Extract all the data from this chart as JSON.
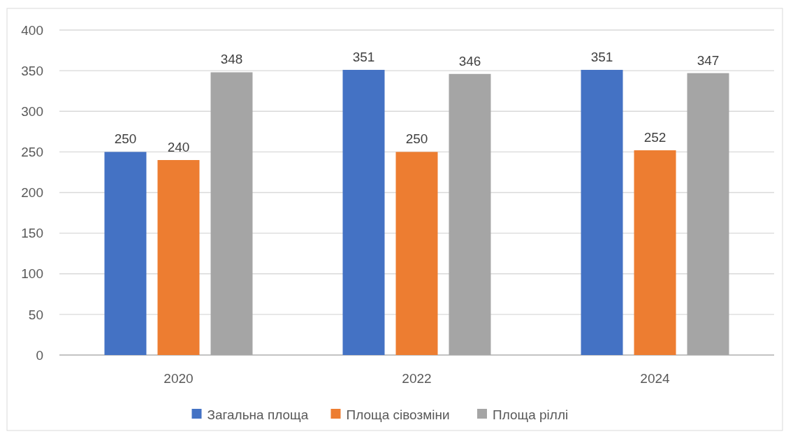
{
  "chart_data": {
    "type": "bar",
    "categories": [
      "2020",
      "2022",
      "2024"
    ],
    "series": [
      {
        "name": "Загальна площа",
        "color": "#4472c4",
        "values": [
          250,
          351,
          351
        ]
      },
      {
        "name": "Площа сівозміни",
        "color": "#ed7d31",
        "values": [
          240,
          250,
          252
        ]
      },
      {
        "name": "Площа ріллі",
        "color": "#a5a5a5",
        "values": [
          348,
          346,
          347
        ]
      }
    ],
    "ylim": [
      0,
      400
    ],
    "yticks": [
      0,
      50,
      100,
      150,
      200,
      250,
      300,
      350,
      400
    ],
    "grid": "y",
    "legend": "bottom",
    "data_labels": true
  }
}
